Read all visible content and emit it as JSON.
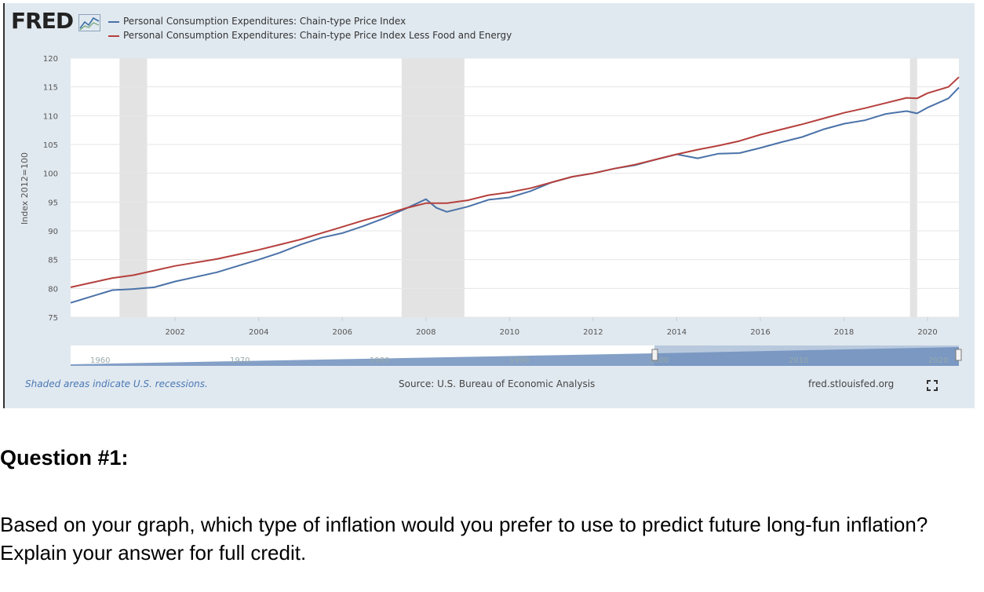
{
  "brand": {
    "logo_text": "FRED"
  },
  "colors": {
    "series_pce": "#4a72a8",
    "series_core": "#b5403d",
    "recession": "#e3e3e3",
    "link": "#4a78b5"
  },
  "footer": {
    "recession_note": "Shaded areas indicate U.S. recessions.",
    "source": "Source: U.S. Bureau of Economic Analysis",
    "site": "fred.stlouisfed.org"
  },
  "icons": {
    "fullscreen": "fullscreen-icon"
  },
  "navigator": {
    "tick_labels": [
      "1960",
      "1970",
      "1980",
      "1990",
      "2000",
      "2010",
      "2020"
    ]
  },
  "question": {
    "title": "Question #1:",
    "body": "Based on your graph, which type of inflation would you prefer to use to predict future long-fun inflation?  Explain your answer for full credit."
  },
  "chart_data": {
    "type": "line",
    "ylabel": "Index 2012=100",
    "xlabel": "",
    "ylim": [
      75,
      120
    ],
    "yticks": [
      75,
      80,
      85,
      90,
      95,
      100,
      105,
      110,
      115,
      120
    ],
    "xlim": [
      2000.0,
      2021.25
    ],
    "xticks": [
      "2002",
      "2004",
      "2006",
      "2008",
      "2010",
      "2012",
      "2014",
      "2016",
      "2018",
      "2020"
    ],
    "grid": true,
    "legend_position": "top-left",
    "recessions": [
      [
        2001.17,
        2001.83
      ],
      [
        2007.92,
        2009.42
      ],
      [
        2020.08,
        2020.25
      ]
    ],
    "series": [
      {
        "name": "Personal Consumption Expenditures: Chain-type Price Index",
        "x": [
          2000.0,
          2000.5,
          2001.0,
          2001.5,
          2002.0,
          2002.5,
          2003.0,
          2003.5,
          2004.0,
          2004.5,
          2005.0,
          2005.5,
          2006.0,
          2006.5,
          2007.0,
          2007.5,
          2008.0,
          2008.5,
          2008.75,
          2009.0,
          2009.5,
          2010.0,
          2010.5,
          2011.0,
          2011.5,
          2012.0,
          2012.5,
          2013.0,
          2013.5,
          2014.0,
          2014.5,
          2015.0,
          2015.5,
          2016.0,
          2016.5,
          2017.0,
          2017.5,
          2018.0,
          2018.5,
          2019.0,
          2019.5,
          2020.0,
          2020.25,
          2020.5,
          2021.0,
          2021.25
        ],
        "values": [
          77.5,
          78.6,
          79.7,
          79.9,
          80.2,
          81.2,
          82.0,
          82.8,
          83.9,
          85.0,
          86.2,
          87.6,
          88.8,
          89.6,
          90.8,
          92.2,
          93.8,
          95.5,
          94.0,
          93.3,
          94.2,
          95.4,
          95.8,
          96.9,
          98.4,
          99.4,
          100.0,
          100.8,
          101.4,
          102.4,
          103.3,
          102.6,
          103.4,
          103.5,
          104.4,
          105.4,
          106.3,
          107.6,
          108.6,
          109.2,
          110.3,
          110.8,
          110.4,
          111.4,
          113.0,
          114.9
        ]
      },
      {
        "name": "Personal Consumption Expenditures: Chain-type Price Index Less Food and Energy",
        "x": [
          2000.0,
          2000.5,
          2001.0,
          2001.5,
          2002.0,
          2002.5,
          2003.0,
          2003.5,
          2004.0,
          2004.5,
          2005.0,
          2005.5,
          2006.0,
          2006.5,
          2007.0,
          2007.5,
          2008.0,
          2008.5,
          2009.0,
          2009.5,
          2010.0,
          2010.5,
          2011.0,
          2011.5,
          2012.0,
          2012.5,
          2013.0,
          2013.5,
          2014.0,
          2014.5,
          2015.0,
          2015.5,
          2016.0,
          2016.5,
          2017.0,
          2017.5,
          2018.0,
          2018.5,
          2019.0,
          2019.5,
          2020.0,
          2020.25,
          2020.5,
          2021.0,
          2021.25
        ],
        "values": [
          80.2,
          81.0,
          81.8,
          82.3,
          83.1,
          83.9,
          84.5,
          85.1,
          85.9,
          86.7,
          87.6,
          88.5,
          89.6,
          90.7,
          91.8,
          92.8,
          93.9,
          94.8,
          94.8,
          95.3,
          96.2,
          96.7,
          97.4,
          98.4,
          99.4,
          100.0,
          100.8,
          101.5,
          102.4,
          103.3,
          104.1,
          104.8,
          105.6,
          106.7,
          107.6,
          108.5,
          109.5,
          110.5,
          111.3,
          112.2,
          113.1,
          113.0,
          113.9,
          115.0,
          116.7
        ]
      }
    ]
  }
}
